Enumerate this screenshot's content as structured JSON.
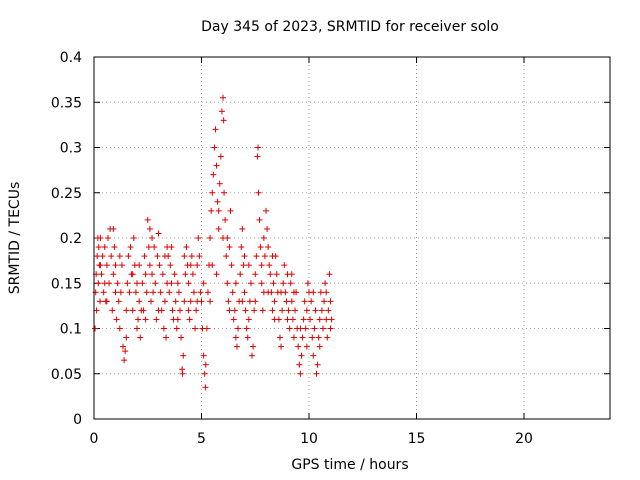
{
  "chart_data": {
    "type": "scatter",
    "title": "Day 345 of 2023, SRMTID for receiver solo",
    "xlabel": "GPS time / hours",
    "ylabel": "SRMTID / TECUs",
    "xlim": [
      0,
      24
    ],
    "ylim": [
      0,
      0.4
    ],
    "xticks": [
      "0",
      "5",
      "10",
      "15",
      "20"
    ],
    "yticks": [
      "0",
      "0.05",
      "0.1",
      "0.15",
      "0.2",
      "0.25",
      "0.3",
      "0.35",
      "0.4"
    ],
    "grid": true,
    "marker": "+",
    "series_color": "#e00000",
    "series": [
      {
        "name": "SRMTID",
        "points": [
          [
            0.05,
            0.1
          ],
          [
            0.08,
            0.14
          ],
          [
            0.1,
            0.16
          ],
          [
            0.12,
            0.12
          ],
          [
            0.15,
            0.18
          ],
          [
            0.18,
            0.2
          ],
          [
            0.2,
            0.15
          ],
          [
            0.22,
            0.19
          ],
          [
            0.25,
            0.17
          ],
          [
            0.28,
            0.13
          ],
          [
            0.3,
            0.2
          ],
          [
            0.35,
            0.16
          ],
          [
            0.4,
            0.18
          ],
          [
            0.45,
            0.14
          ],
          [
            0.5,
            0.19
          ],
          [
            0.55,
            0.13
          ],
          [
            0.6,
            0.17
          ],
          [
            0.65,
            0.2
          ],
          [
            0.7,
            0.15
          ],
          [
            0.75,
            0.21
          ],
          [
            0.8,
            0.18
          ],
          [
            0.85,
            0.12
          ],
          [
            0.9,
            0.16
          ],
          [
            0.95,
            0.19
          ],
          [
            1.0,
            0.14
          ],
          [
            1.05,
            0.11
          ],
          [
            1.1,
            0.15
          ],
          [
            1.15,
            0.13
          ],
          [
            1.2,
            0.1
          ],
          [
            1.25,
            0.14
          ],
          [
            1.3,
            0.17
          ],
          [
            1.35,
            0.08
          ],
          [
            1.4,
            0.065
          ],
          [
            1.45,
            0.075
          ],
          [
            1.5,
            0.12
          ],
          [
            1.55,
            0.15
          ],
          [
            1.6,
            0.18
          ],
          [
            1.65,
            0.14
          ],
          [
            1.7,
            0.19
          ],
          [
            1.75,
            0.16
          ],
          [
            1.8,
            0.12
          ],
          [
            1.85,
            0.2
          ],
          [
            1.9,
            0.17
          ],
          [
            1.95,
            0.14
          ],
          [
            2.0,
            0.1
          ],
          [
            2.05,
            0.11
          ],
          [
            2.1,
            0.13
          ],
          [
            2.15,
            0.09
          ],
          [
            2.2,
            0.12
          ],
          [
            2.25,
            0.15
          ],
          [
            2.3,
            0.12
          ],
          [
            2.35,
            0.18
          ],
          [
            2.4,
            0.16
          ],
          [
            2.45,
            0.14
          ],
          [
            2.5,
            0.22
          ],
          [
            2.55,
            0.19
          ],
          [
            2.6,
            0.17
          ],
          [
            2.65,
            0.13
          ],
          [
            2.7,
            0.16
          ],
          [
            2.75,
            0.14
          ],
          [
            2.8,
            0.19
          ],
          [
            2.85,
            0.15
          ],
          [
            2.9,
            0.11
          ],
          [
            2.95,
            0.18
          ],
          [
            3.0,
            0.205
          ],
          [
            3.05,
            0.17
          ],
          [
            3.1,
            0.14
          ],
          [
            3.15,
            0.12
          ],
          [
            3.2,
            0.16
          ],
          [
            3.25,
            0.1
          ],
          [
            3.3,
            0.13
          ],
          [
            3.35,
            0.09
          ],
          [
            3.4,
            0.15
          ],
          [
            3.45,
            0.18
          ],
          [
            3.5,
            0.14
          ],
          [
            3.55,
            0.17
          ],
          [
            3.6,
            0.19
          ],
          [
            3.65,
            0.12
          ],
          [
            3.7,
            0.11
          ],
          [
            3.75,
            0.16
          ],
          [
            3.8,
            0.13
          ],
          [
            3.85,
            0.1
          ],
          [
            3.9,
            0.15
          ],
          [
            3.95,
            0.14
          ],
          [
            4.0,
            0.12
          ],
          [
            4.05,
            0.09
          ],
          [
            4.1,
            0.055
          ],
          [
            4.12,
            0.05
          ],
          [
            4.15,
            0.07
          ],
          [
            4.2,
            0.13
          ],
          [
            4.25,
            0.16
          ],
          [
            4.3,
            0.19
          ],
          [
            4.35,
            0.17
          ],
          [
            4.4,
            0.15
          ],
          [
            4.45,
            0.11
          ],
          [
            4.5,
            0.13
          ],
          [
            4.55,
            0.18
          ],
          [
            4.6,
            0.16
          ],
          [
            4.65,
            0.14
          ],
          [
            4.7,
            0.1
          ],
          [
            4.75,
            0.12
          ],
          [
            4.8,
            0.17
          ],
          [
            4.85,
            0.2
          ],
          [
            4.9,
            0.18
          ],
          [
            4.95,
            0.14
          ],
          [
            5.0,
            0.13
          ],
          [
            5.05,
            0.1
          ],
          [
            5.1,
            0.07
          ],
          [
            5.15,
            0.05
          ],
          [
            5.18,
            0.035
          ],
          [
            5.2,
            0.06
          ],
          [
            5.25,
            0.1
          ],
          [
            5.3,
            0.14
          ],
          [
            5.35,
            0.17
          ],
          [
            5.4,
            0.2
          ],
          [
            5.45,
            0.23
          ],
          [
            5.5,
            0.25
          ],
          [
            5.55,
            0.27
          ],
          [
            5.6,
            0.3
          ],
          [
            5.65,
            0.32
          ],
          [
            5.7,
            0.28
          ],
          [
            5.75,
            0.24
          ],
          [
            5.8,
            0.21
          ],
          [
            5.85,
            0.26
          ],
          [
            5.9,
            0.29
          ],
          [
            5.95,
            0.34
          ],
          [
            6.0,
            0.355
          ],
          [
            6.03,
            0.33
          ],
          [
            6.05,
            0.25
          ],
          [
            6.1,
            0.22
          ],
          [
            6.15,
            0.18
          ],
          [
            6.2,
            0.15
          ],
          [
            6.25,
            0.13
          ],
          [
            6.3,
            0.19
          ],
          [
            6.35,
            0.23
          ],
          [
            6.4,
            0.17
          ],
          [
            6.45,
            0.14
          ],
          [
            6.5,
            0.11
          ],
          [
            6.55,
            0.12
          ],
          [
            6.6,
            0.09
          ],
          [
            6.65,
            0.08
          ],
          [
            6.7,
            0.1
          ],
          [
            6.75,
            0.13
          ],
          [
            6.8,
            0.16
          ],
          [
            6.85,
            0.19
          ],
          [
            6.9,
            0.21
          ],
          [
            6.95,
            0.17
          ],
          [
            7.0,
            0.14
          ],
          [
            7.05,
            0.12
          ],
          [
            7.1,
            0.1
          ],
          [
            7.15,
            0.09
          ],
          [
            7.2,
            0.11
          ],
          [
            7.25,
            0.13
          ],
          [
            7.3,
            0.15
          ],
          [
            7.35,
            0.07
          ],
          [
            7.4,
            0.08
          ],
          [
            7.45,
            0.12
          ],
          [
            7.5,
            0.16
          ],
          [
            7.55,
            0.18
          ],
          [
            7.6,
            0.29
          ],
          [
            7.63,
            0.3
          ],
          [
            7.65,
            0.25
          ],
          [
            7.7,
            0.22
          ],
          [
            7.75,
            0.19
          ],
          [
            7.8,
            0.15
          ],
          [
            7.85,
            0.12
          ],
          [
            7.9,
            0.14
          ],
          [
            7.95,
            0.18
          ],
          [
            8.0,
            0.23
          ],
          [
            8.05,
            0.21
          ],
          [
            8.1,
            0.19
          ],
          [
            8.15,
            0.17
          ],
          [
            8.2,
            0.16
          ],
          [
            8.25,
            0.14
          ],
          [
            8.3,
            0.12
          ],
          [
            8.35,
            0.15
          ],
          [
            8.4,
            0.13
          ],
          [
            8.45,
            0.18
          ],
          [
            8.5,
            0.16
          ],
          [
            8.55,
            0.14
          ],
          [
            8.6,
            0.11
          ],
          [
            8.65,
            0.09
          ],
          [
            8.7,
            0.08
          ],
          [
            8.75,
            0.12
          ],
          [
            8.8,
            0.15
          ],
          [
            8.85,
            0.17
          ],
          [
            8.9,
            0.14
          ],
          [
            8.95,
            0.13
          ],
          [
            9.0,
            0.16
          ],
          [
            9.05,
            0.12
          ],
          [
            9.1,
            0.1
          ],
          [
            9.15,
            0.15
          ],
          [
            9.2,
            0.13
          ],
          [
            9.25,
            0.11
          ],
          [
            9.3,
            0.09
          ],
          [
            9.35,
            0.12
          ],
          [
            9.4,
            0.14
          ],
          [
            9.45,
            0.1
          ],
          [
            9.5,
            0.08
          ],
          [
            9.55,
            0.06
          ],
          [
            9.6,
            0.05
          ],
          [
            9.65,
            0.07
          ],
          [
            9.7,
            0.09
          ],
          [
            9.75,
            0.11
          ],
          [
            9.8,
            0.13
          ],
          [
            9.85,
            0.1
          ],
          [
            9.9,
            0.12
          ],
          [
            9.95,
            0.15
          ],
          [
            10.0,
            0.14
          ],
          [
            10.05,
            0.11
          ],
          [
            10.1,
            0.13
          ],
          [
            10.15,
            0.09
          ],
          [
            10.2,
            0.07
          ],
          [
            10.25,
            0.1
          ],
          [
            10.3,
            0.12
          ],
          [
            10.35,
            0.05
          ],
          [
            10.4,
            0.06
          ],
          [
            10.45,
            0.09
          ],
          [
            10.5,
            0.11
          ],
          [
            10.55,
            0.14
          ],
          [
            10.6,
            0.12
          ],
          [
            10.65,
            0.1
          ],
          [
            10.7,
            0.13
          ],
          [
            10.75,
            0.15
          ],
          [
            10.8,
            0.11
          ],
          [
            10.85,
            0.09
          ],
          [
            10.9,
            0.12
          ],
          [
            10.95,
            0.16
          ],
          [
            11.0,
            0.13
          ],
          [
            11.05,
            0.11
          ],
          [
            0.3,
            0.17
          ],
          [
            0.6,
            0.13
          ],
          [
            0.9,
            0.21
          ],
          [
            1.2,
            0.18
          ],
          [
            1.5,
            0.09
          ],
          [
            1.8,
            0.16
          ],
          [
            2.1,
            0.17
          ],
          [
            2.4,
            0.11
          ],
          [
            2.7,
            0.2
          ],
          [
            3.0,
            0.12
          ],
          [
            3.3,
            0.18
          ],
          [
            3.6,
            0.15
          ],
          [
            3.9,
            0.11
          ],
          [
            4.2,
            0.18
          ],
          [
            4.5,
            0.17
          ],
          [
            4.8,
            0.13
          ],
          [
            5.1,
            0.15
          ],
          [
            5.4,
            0.13
          ],
          [
            5.7,
            0.16
          ],
          [
            6.0,
            0.2
          ],
          [
            6.3,
            0.12
          ],
          [
            6.6,
            0.15
          ],
          [
            6.9,
            0.13
          ],
          [
            7.2,
            0.17
          ],
          [
            7.5,
            0.13
          ],
          [
            7.8,
            0.17
          ],
          [
            8.1,
            0.14
          ],
          [
            8.4,
            0.11
          ],
          [
            8.7,
            0.14
          ],
          [
            9.0,
            0.11
          ],
          [
            9.3,
            0.14
          ],
          [
            9.6,
            0.1
          ],
          [
            9.9,
            0.08
          ],
          [
            10.2,
            0.14
          ],
          [
            10.5,
            0.08
          ],
          [
            10.8,
            0.14
          ],
          [
            11.0,
            0.1
          ],
          [
            0.5,
            0.15
          ],
          [
            1.0,
            0.17
          ],
          [
            2.0,
            0.15
          ],
          [
            2.6,
            0.21
          ],
          [
            3.4,
            0.19
          ],
          [
            4.4,
            0.12
          ],
          [
            5.5,
            0.17
          ],
          [
            5.8,
            0.23
          ],
          [
            6.2,
            0.2
          ],
          [
            7.0,
            0.18
          ],
          [
            7.9,
            0.2
          ],
          [
            8.3,
            0.18
          ],
          [
            9.2,
            0.16
          ]
        ]
      }
    ]
  }
}
